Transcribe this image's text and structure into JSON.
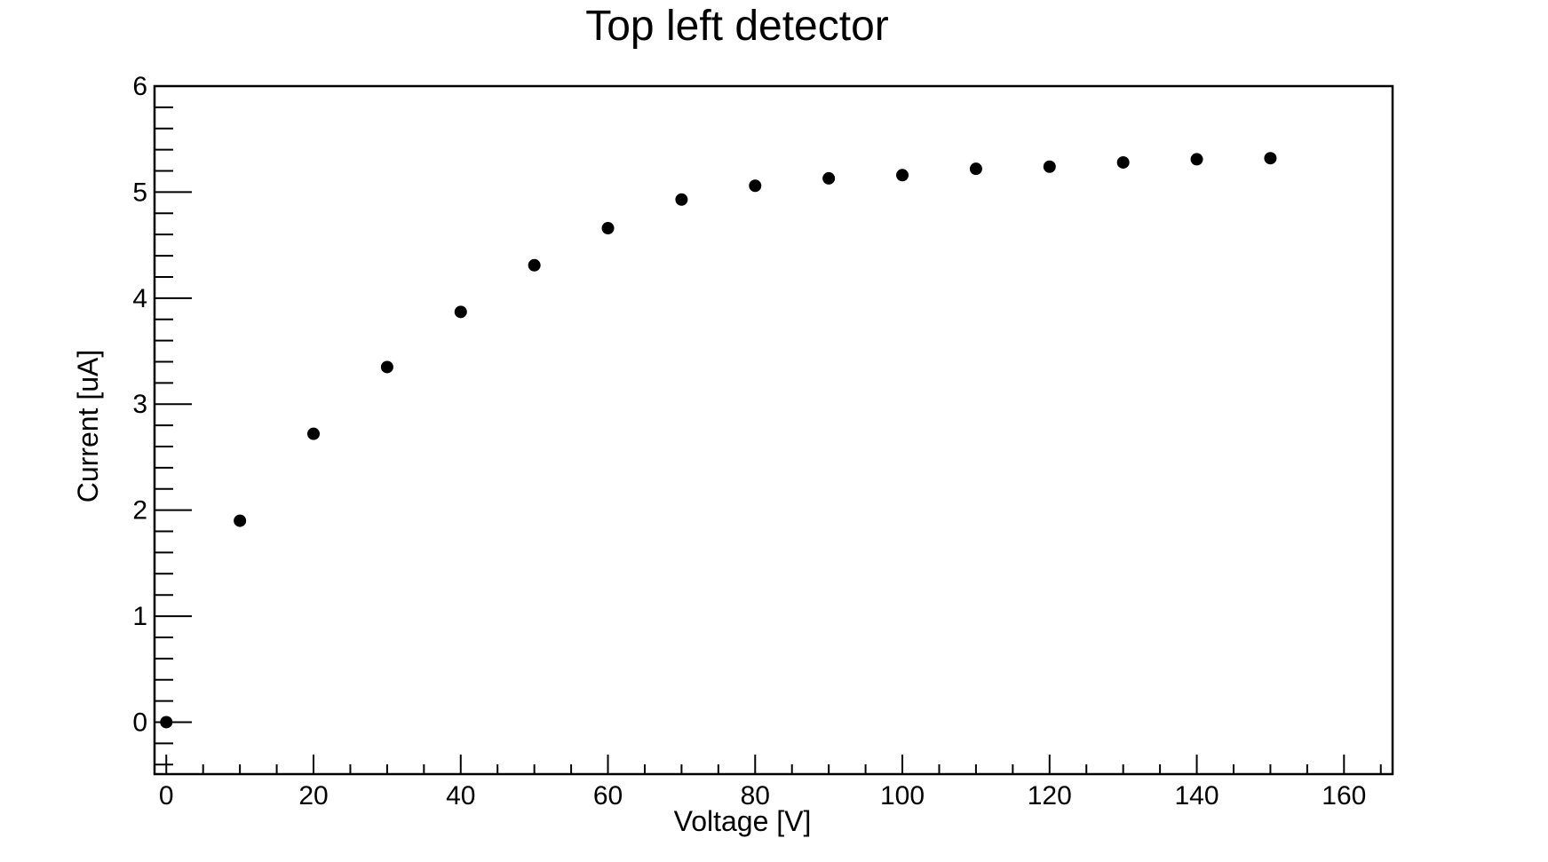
{
  "page": {
    "background_color": "#ffffff"
  },
  "chart_data": {
    "type": "scatter",
    "title": "Top left detector",
    "xlabel": "Voltage [V]",
    "ylabel": "Current [uA]",
    "x": [
      0,
      10,
      20,
      30,
      40,
      50,
      60,
      70,
      80,
      90,
      100,
      110,
      120,
      130,
      140,
      150
    ],
    "y": [
      0.0,
      1.9,
      2.72,
      3.35,
      3.87,
      4.31,
      4.66,
      4.93,
      5.06,
      5.13,
      5.16,
      5.22,
      5.24,
      5.28,
      5.31,
      5.32
    ],
    "xlim": [
      -1.6,
      166.6
    ],
    "ylim": [
      -0.49,
      6.0
    ],
    "xticks": [
      0,
      20,
      40,
      60,
      80,
      100,
      120,
      140,
      160
    ],
    "yticks": [
      0,
      1,
      2,
      3,
      4,
      5,
      6
    ],
    "x_minor_step": 5,
    "y_minor_step": 0.2,
    "grid": false,
    "legend": "none",
    "marker": "filled-circle",
    "marker_radius_px": 7,
    "marker_color": "#000000",
    "axis_color": "#000000",
    "background_color": "#ffffff"
  }
}
